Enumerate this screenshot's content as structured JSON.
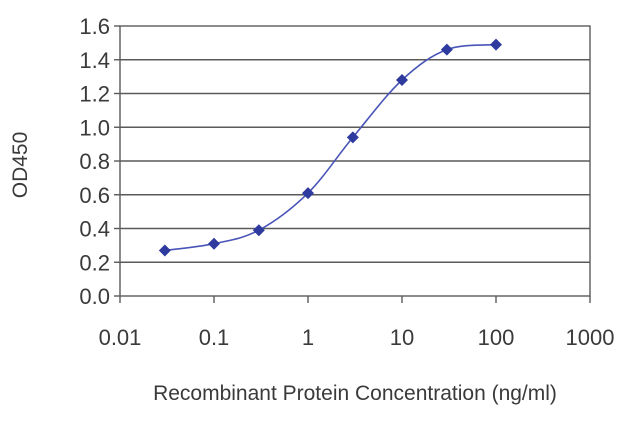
{
  "chart_data": {
    "type": "scatter",
    "xlabel": "Recombinant Protein Concentration (ng/ml)",
    "ylabel": "OD450",
    "xscale": "log",
    "xlim": [
      0.01,
      1000
    ],
    "ylim": [
      0.0,
      1.6
    ],
    "xticks": [
      "0.01",
      "0.1",
      "1",
      "10",
      "100",
      "1000"
    ],
    "yticks": [
      "0.0",
      "0.2",
      "0.4",
      "0.6",
      "0.8",
      "1.0",
      "1.2",
      "1.4",
      "1.6"
    ],
    "grid": "horizontal",
    "marker": "diamond",
    "fit_curve": true,
    "series": [
      {
        "color": "#2e3a9e",
        "x": [
          0.03,
          0.1,
          0.3,
          1,
          3,
          10,
          30,
          100
        ],
        "y": [
          0.27,
          0.31,
          0.39,
          0.61,
          0.94,
          1.28,
          1.46,
          1.49
        ]
      }
    ]
  }
}
